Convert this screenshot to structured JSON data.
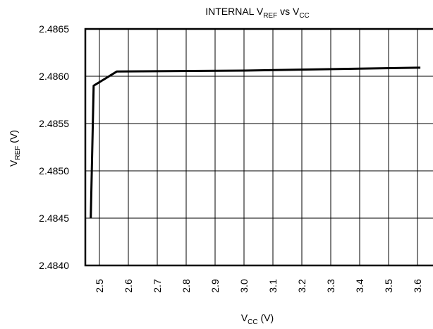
{
  "chart_data": {
    "type": "line",
    "title": {
      "main": "INTERNAL V",
      "sub": "REF",
      "mid": " vs V",
      "sub2": "CC"
    },
    "xlabel": {
      "main": "V",
      "sub": "CC",
      "rest": " (V)"
    },
    "ylabel": {
      "main": "V",
      "sub": "REF",
      "rest": " (V)"
    },
    "xlim": [
      2.46,
      3.61
    ],
    "ylim": [
      2.484,
      2.4865
    ],
    "x_ticks": [
      "2.5",
      "2.6",
      "2.7",
      "2.8",
      "2.9",
      "3.0",
      "3.1",
      "3.2",
      "3.3",
      "3.4",
      "3.5",
      "3.6"
    ],
    "y_ticks": [
      "2.4865",
      "2.4860",
      "2.4855",
      "2.4850",
      "2.4845",
      "2.4840"
    ],
    "grid": true,
    "series": [
      {
        "x": [
          2.47,
          2.48,
          2.56,
          3.0,
          3.6,
          3.61
        ],
        "y": [
          2.4845,
          2.4859,
          2.48605,
          2.48606,
          2.48609,
          2.48609
        ]
      }
    ]
  }
}
